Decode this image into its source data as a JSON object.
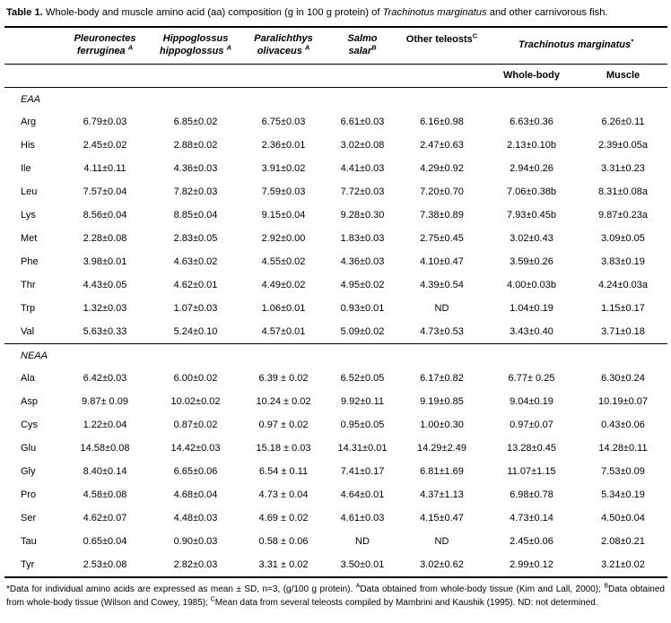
{
  "title": {
    "prefix": "Table 1.",
    "text1": " Whole-body and muscle amino acid (aa) composition (g in 100 g protein) of ",
    "species": "Trachinotus marginatus",
    "text2": " and other carnivorous fish."
  },
  "table": {
    "columns": [
      {
        "line1": "Pleuronectes",
        "line2": "ferruginea",
        "sup": "A"
      },
      {
        "line1": "Hippoglossus",
        "line2": "hippoglossus",
        "sup": "A"
      },
      {
        "line1": "Paralichthys",
        "line2": "olivaceus",
        "sup": "A"
      },
      {
        "line1": "Salmo",
        "line2": "salar",
        "sup": "B"
      },
      {
        "line1": "Other teleosts",
        "sup": "C"
      },
      {
        "line1": "Trachinotus marginatus",
        "sup": "*"
      }
    ],
    "subheaders": [
      "Whole-body",
      "Muscle"
    ],
    "sections": [
      {
        "label": "EAA",
        "rows": [
          {
            "label": "Arg",
            "values": [
              "6.79±0.03",
              "6.85±0.02",
              "6.75±0.03",
              "6.61±0.03",
              "6.16±0.98",
              "6.63±0.36",
              "6.26±0.11"
            ]
          },
          {
            "label": "His",
            "values": [
              "2.45±0.02",
              "2.88±0.02",
              "2.36±0.01",
              "3.02±0.08",
              "2.47±0.63",
              "2.13±0.10b",
              "2.39±0.05a"
            ]
          },
          {
            "label": "Ile",
            "values": [
              "4.11±0.11",
              "4.36±0.03",
              "3.91±0.02",
              "4.41±0.03",
              "4.29±0.92",
              "2.94±0.26",
              "3.31±0.23"
            ]
          },
          {
            "label": "Leu",
            "values": [
              "7.57±0.04",
              "7.82±0.03",
              "7.59±0.03",
              "7.72±0.03",
              "7.20±0.70",
              "7.06±0.38b",
              "8.31±0.08a"
            ]
          },
          {
            "label": "Lys",
            "values": [
              "8.56±0.04",
              "8.85±0.04",
              "9.15±0.04",
              "9.28±0.30",
              "7.38±0.89",
              "7.93±0.45b",
              "9.87±0.23a"
            ]
          },
          {
            "label": "Met",
            "values": [
              "2.28±0.08",
              "2.83±0.05",
              "2.92±0.00",
              "1.83±0.03",
              "2.75±0.45",
              "3.02±0.43",
              "3.09±0.05"
            ]
          },
          {
            "label": "Phe",
            "values": [
              "3.98±0.01",
              "4.63±0.02",
              "4.55±0.02",
              "4.36±0.03",
              "4.10±0.47",
              "3.59±0.26",
              "3.83±0.19"
            ]
          },
          {
            "label": "Thr",
            "values": [
              "4.43±0.05",
              "4.62±0.01",
              "4.49±0.02",
              "4.95±0.02",
              "4.39±0.54",
              "4.00±0.03b",
              "4.24±0.03a"
            ]
          },
          {
            "label": "Trp",
            "values": [
              "1.32±0.03",
              "1.07±0.03",
              "1.06±0.01",
              "0.93±0.01",
              "ND",
              "1.04±0.19",
              "1.15±0.17"
            ]
          },
          {
            "label": "Val",
            "values": [
              "5.63±0.33",
              "5.24±0.10",
              "4.57±0.01",
              "5.09±0.02",
              "4.73±0.53",
              "3.43±0.40",
              "3.71±0.18"
            ]
          }
        ]
      },
      {
        "label": "NEAA",
        "rows": [
          {
            "label": "Ala",
            "values": [
              "6.42±0.03",
              "6.00±0.02",
              "6.39 ± 0.02",
              "6.52±0.05",
              "6.17±0.82",
              "6.77± 0.25",
              "6.30±0.24"
            ]
          },
          {
            "label": "Asp",
            "values": [
              "9.87± 0.09",
              "10.02±0.02",
              "10.24 ± 0.02",
              "9.92±0.11",
              "9.19±0.85",
              "9.04±0.19",
              "10.19±0.07"
            ]
          },
          {
            "label": "Cys",
            "values": [
              "1.22±0.04",
              "0.87±0.02",
              "0.97 ± 0.02",
              "0.95±0.05",
              "1.00±0.30",
              "0.97±0.07",
              "0.43±0.06"
            ]
          },
          {
            "label": "Glu",
            "values": [
              "14.58±0.08",
              "14.42±0.03",
              "15.18 ± 0.03",
              "14.31±0.01",
              "14.29±2.49",
              "13.28±0.45",
              "14.28±0.11"
            ]
          },
          {
            "label": "Gly",
            "values": [
              "8.40±0.14",
              "6.65±0.06",
              "6.54 ± 0.11",
              "7.41±0.17",
              "6.81±1.69",
              "11.07±1.15",
              "7.53±0.09"
            ]
          },
          {
            "label": "Pro",
            "values": [
              "4.58±0.08",
              "4.68±0.04",
              "4.73 ± 0.04",
              "4.64±0.01",
              "4.37±1.13",
              "6.98±0.78",
              "5.34±0.19"
            ]
          },
          {
            "label": "Ser",
            "values": [
              "4.62±0.07",
              "4.48±0.03",
              "4.69 ± 0.02",
              "4.61±0.03",
              "4.15±0.47",
              "4.73±0.14",
              "4.50±0.04"
            ]
          },
          {
            "label": "Tau",
            "values": [
              "0.65±0.04",
              "0.90±0.03",
              "0.58 ± 0.06",
              "ND",
              "ND",
              "2.45±0.06",
              "2.08±0.21"
            ]
          },
          {
            "label": "Tyr",
            "values": [
              "2.53±0.08",
              "2.82±0.03",
              "3.31 ± 0.02",
              "3.50±0.01",
              "3.02±0.62",
              "2.99±0.12",
              "3.21±0.02"
            ]
          }
        ]
      }
    ]
  },
  "footnote": {
    "segments": [
      {
        "text": "*Data for individual amino acids are expressed as mean ± SD, n=3, (g/100 g protein). "
      },
      {
        "sup": "A"
      },
      {
        "text": "Data obtained from whole-body tissue (Kim and Lall, 2000); "
      },
      {
        "sup": "B"
      },
      {
        "text": "Data obtained from whole-body tissue (Wilson and Cowey, 1985); "
      },
      {
        "sup": "C"
      },
      {
        "text": "Mean data from several teleosts compiled by Mambrini and Kaushik (1995). ND: not determined."
      }
    ]
  }
}
